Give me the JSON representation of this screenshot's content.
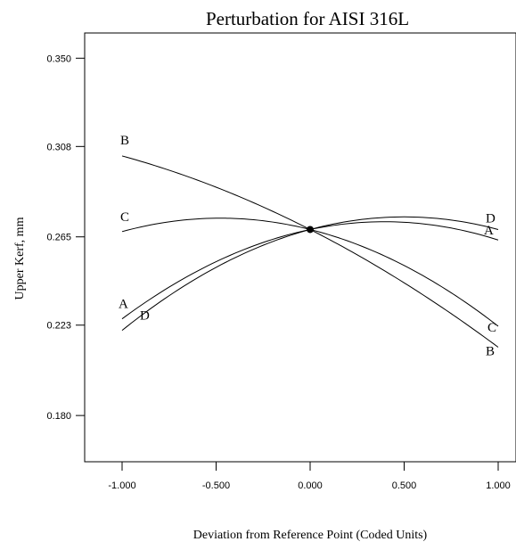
{
  "chart_data": {
    "type": "line",
    "title": "Perturbation for AISI 316L",
    "xlabel": "Deviation from Reference Point (Coded Units)",
    "ylabel": "Upper Kerf, mm",
    "xlim": [
      -1.0,
      1.0
    ],
    "ylim": [
      0.158,
      0.362
    ],
    "x_ticks": [
      "-1.000",
      "-0.500",
      "0.000",
      "0.500",
      "1.000"
    ],
    "y_ticks": [
      "0.180",
      "0.223",
      "0.265",
      "0.308",
      "0.350"
    ],
    "grid": false,
    "reference_point": {
      "x": 0.0,
      "y": 0.2685
    },
    "series": [
      {
        "name": "A",
        "x": [
          -1.0,
          -0.5,
          0.0,
          0.5,
          1.0
        ],
        "y": [
          0.226,
          0.2525,
          0.2685,
          0.2695,
          0.2635
        ]
      },
      {
        "name": "B",
        "x": [
          -1.0,
          -0.5,
          0.0,
          0.5,
          1.0
        ],
        "y": [
          0.3035,
          0.2885,
          0.2685,
          0.2435,
          0.2125
        ]
      },
      {
        "name": "C",
        "x": [
          -1.0,
          -0.5,
          0.0,
          0.5,
          1.0
        ],
        "y": [
          0.2675,
          0.2725,
          0.2685,
          0.2545,
          0.2225
        ]
      },
      {
        "name": "D",
        "x": [
          -1.0,
          -0.5,
          0.0,
          0.5,
          1.0
        ],
        "y": [
          0.2205,
          0.2485,
          0.2685,
          0.2725,
          0.2685
        ]
      }
    ]
  }
}
